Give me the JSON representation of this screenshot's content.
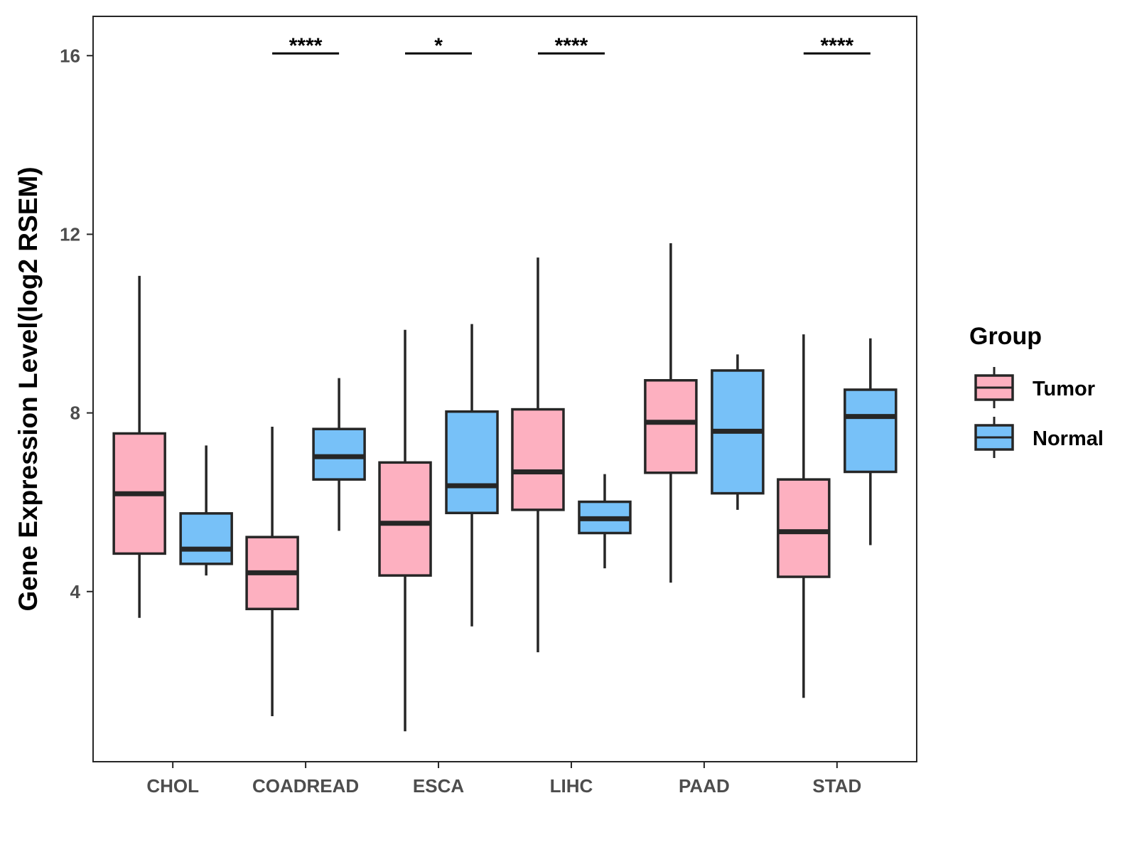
{
  "chart_data": {
    "type": "boxplot",
    "title": "",
    "xlabel": "",
    "ylabel": "Gene Expression Level(log2 RSEM)",
    "ylim": [
      0.19,
      16.88
    ],
    "yticks": [
      4,
      8,
      12,
      16
    ],
    "grid": false,
    "legend": {
      "title": "Group",
      "position": "right",
      "entries": [
        "Tumor",
        "Normal"
      ]
    },
    "colors": {
      "Tumor": "#FDB0C0",
      "Normal": "#77C1F8",
      "stroke": "#262626"
    },
    "categories": [
      "CHOL",
      "COADREAD",
      "ESCA",
      "LIHC",
      "PAAD",
      "STAD"
    ],
    "series": [
      {
        "name": "Tumor",
        "boxes": [
          {
            "min": 3.41,
            "q1": 4.85,
            "median": 6.19,
            "q3": 7.54,
            "max": 11.07
          },
          {
            "min": 1.21,
            "q1": 3.61,
            "median": 4.42,
            "q3": 5.22,
            "max": 7.69
          },
          {
            "min": 0.87,
            "q1": 4.36,
            "median": 5.53,
            "q3": 6.89,
            "max": 9.86
          },
          {
            "min": 2.64,
            "q1": 5.83,
            "median": 6.68,
            "q3": 8.08,
            "max": 11.48
          },
          {
            "min": 4.2,
            "q1": 6.66,
            "median": 7.79,
            "q3": 8.73,
            "max": 11.8
          },
          {
            "min": 1.62,
            "q1": 4.33,
            "median": 5.34,
            "q3": 6.51,
            "max": 9.76
          }
        ]
      },
      {
        "name": "Normal",
        "boxes": [
          {
            "min": 4.36,
            "q1": 4.62,
            "median": 4.95,
            "q3": 5.75,
            "max": 7.27
          },
          {
            "min": 5.36,
            "q1": 6.51,
            "median": 7.02,
            "q3": 7.64,
            "max": 8.78
          },
          {
            "min": 3.22,
            "q1": 5.76,
            "median": 6.37,
            "q3": 8.03,
            "max": 9.99
          },
          {
            "min": 4.52,
            "q1": 5.31,
            "median": 5.63,
            "q3": 6.01,
            "max": 6.63
          },
          {
            "min": 5.83,
            "q1": 6.2,
            "median": 7.59,
            "q3": 8.95,
            "max": 9.31
          },
          {
            "min": 5.04,
            "q1": 6.68,
            "median": 7.92,
            "q3": 8.52,
            "max": 9.67
          }
        ]
      }
    ],
    "annotations": [
      {
        "category": "COADREAD",
        "label": "****",
        "y": 16.05
      },
      {
        "category": "ESCA",
        "label": "*",
        "y": 16.05
      },
      {
        "category": "LIHC",
        "label": "****",
        "y": 16.05
      },
      {
        "category": "STAD",
        "label": "****",
        "y": 16.05
      }
    ]
  }
}
